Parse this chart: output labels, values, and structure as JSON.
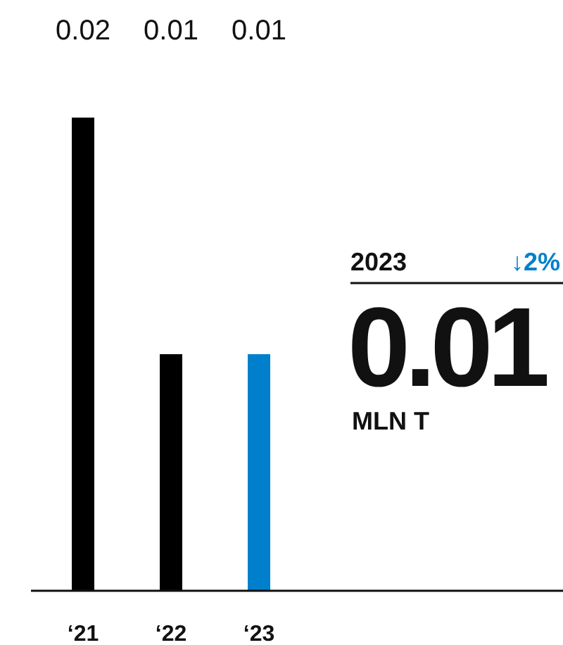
{
  "chart_data": {
    "type": "bar",
    "categories": [
      "‘21",
      "‘22",
      "‘23"
    ],
    "values": [
      0.02,
      0.01,
      0.01
    ],
    "colors": [
      "#000000",
      "#000000",
      "#0080cc"
    ],
    "data_labels": true,
    "annotations": [
      "2023",
      "↓2%",
      "0.01",
      "MLN T"
    ]
  }
}
